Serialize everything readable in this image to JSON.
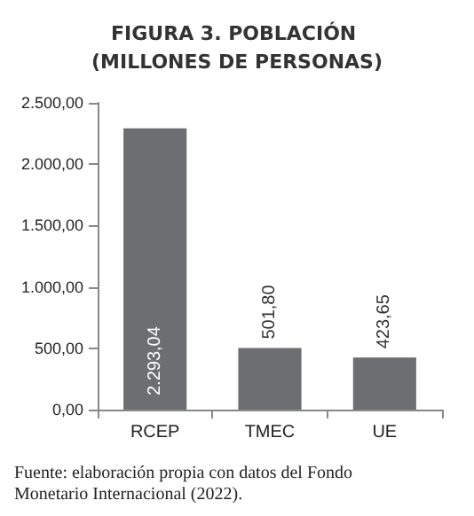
{
  "chart_data": {
    "type": "bar",
    "title": "FIGURA 3. POBLACIÓN (MILLONES DE PERSONAS)",
    "categories": [
      "RCEP",
      "TMEC",
      "UE"
    ],
    "values": [
      2293.04,
      501.8,
      423.65
    ],
    "value_labels": [
      "2.293,04",
      "501,80",
      "423,65"
    ],
    "color": "#6d6e71",
    "ylim": [
      0,
      2500
    ],
    "yticks": [
      {
        "value": 0,
        "label": "0,00"
      },
      {
        "value": 500,
        "label": "500,00"
      },
      {
        "value": 1000,
        "label": "1.000,00"
      },
      {
        "value": 1500,
        "label": "1.500,00"
      },
      {
        "value": 2000,
        "label": "2.000,00"
      },
      {
        "value": 2500,
        "label": "2.500,00"
      }
    ],
    "grid": false,
    "annotations": [
      "Fuente: elaboración propia con datos del Fondo Monetario Internacional (2022)."
    ]
  }
}
